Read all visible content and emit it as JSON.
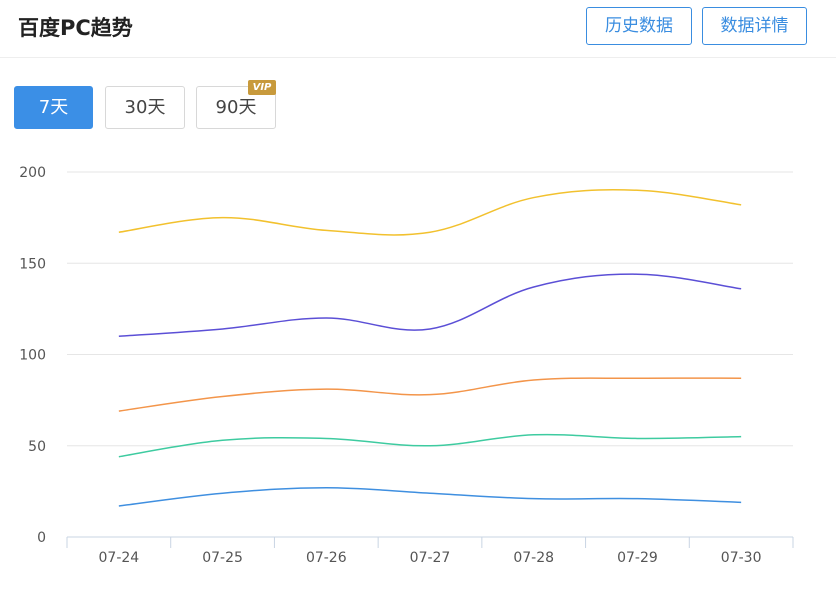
{
  "header": {
    "title": "百度PC趋势",
    "history_label": "历史数据",
    "details_label": "数据详情"
  },
  "range_buttons": {
    "r7": "7天",
    "r30": "30天",
    "r90": "90天",
    "vip_badge": "VIP",
    "active": "7天"
  },
  "colors": {
    "accent": "#3b8fe6",
    "vip": "#c89a3c"
  },
  "chart_data": {
    "type": "line",
    "title": "",
    "xlabel": "",
    "ylabel": "",
    "categories": [
      "07-24",
      "07-25",
      "07-26",
      "07-27",
      "07-28",
      "07-29",
      "07-30"
    ],
    "y_ticks": [
      0,
      50,
      100,
      150,
      200
    ],
    "ylim": [
      0,
      200
    ],
    "grid": true,
    "series": [
      {
        "color": "#f2c12e",
        "values": [
          167,
          175,
          168,
          167,
          186,
          190,
          182
        ]
      },
      {
        "color": "#5b4fd6",
        "values": [
          110,
          114,
          120,
          114,
          137,
          144,
          136
        ]
      },
      {
        "color": "#f3954a",
        "values": [
          69,
          77,
          81,
          78,
          86,
          87,
          87
        ]
      },
      {
        "color": "#3ecba0",
        "values": [
          44,
          53,
          54,
          50,
          56,
          54,
          55
        ]
      },
      {
        "color": "#3f8fe0",
        "values": [
          17,
          24,
          27,
          24,
          21,
          21,
          19
        ]
      }
    ]
  }
}
